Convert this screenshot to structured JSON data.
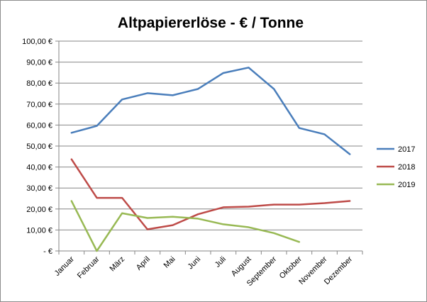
{
  "chart_data": {
    "type": "line",
    "title": "Altpapiererlöse - € / Tonne",
    "xlabel": "",
    "ylabel": "",
    "categories": [
      "Januar",
      "Februar",
      "März",
      "April",
      "Mai",
      "Juni",
      "Juli",
      "August",
      "September",
      "Oktober",
      "November",
      "Dezember"
    ],
    "y_ticks": [
      "-  €",
      "10,00 €",
      "20,00 €",
      "30,00 €",
      "40,00 €",
      "50,00 €",
      "60,00 €",
      "70,00 €",
      "80,00 €",
      "90,00 €",
      "100,00 €"
    ],
    "ylim": [
      0,
      100
    ],
    "grid": true,
    "legend_position": "right",
    "series": [
      {
        "name": "2017",
        "color": "#4a7ebb",
        "values": [
          56.3,
          59.6,
          72.2,
          75.2,
          74.2,
          77.2,
          84.8,
          87.4,
          77.2,
          58.6,
          55.6,
          46.1
        ]
      },
      {
        "name": "2018",
        "color": "#be4b48",
        "values": [
          43.7,
          25.3,
          25.3,
          10.3,
          12.3,
          17.5,
          20.8,
          21.1,
          22.1,
          22.1,
          22.8,
          23.8
        ]
      },
      {
        "name": "2019",
        "color": "#98b954",
        "values": [
          23.8,
          0.0,
          18.0,
          15.7,
          16.3,
          15.4,
          12.7,
          11.3,
          8.5,
          4.3,
          null,
          null
        ]
      }
    ]
  }
}
